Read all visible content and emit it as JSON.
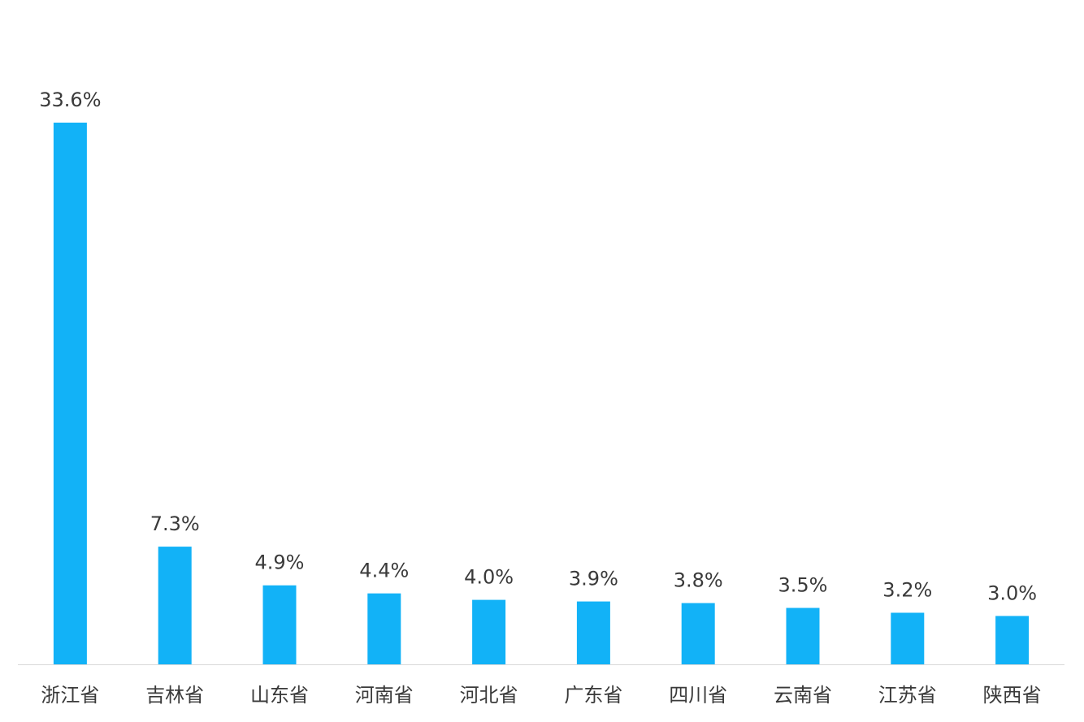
{
  "chart_data": {
    "type": "bar",
    "categories": [
      "浙江省",
      "吉林省",
      "山东省",
      "河南省",
      "河北省",
      "广东省",
      "四川省",
      "云南省",
      "江苏省",
      "陕西省"
    ],
    "values": [
      33.6,
      7.3,
      4.9,
      4.4,
      4.0,
      3.9,
      3.8,
      3.5,
      3.2,
      3.0
    ],
    "value_labels": [
      "33.6%",
      "7.3%",
      "4.9%",
      "4.4%",
      "4.0%",
      "3.9%",
      "3.8%",
      "3.5%",
      "3.2%",
      "3.0%"
    ],
    "color": "#12b2f7"
  }
}
